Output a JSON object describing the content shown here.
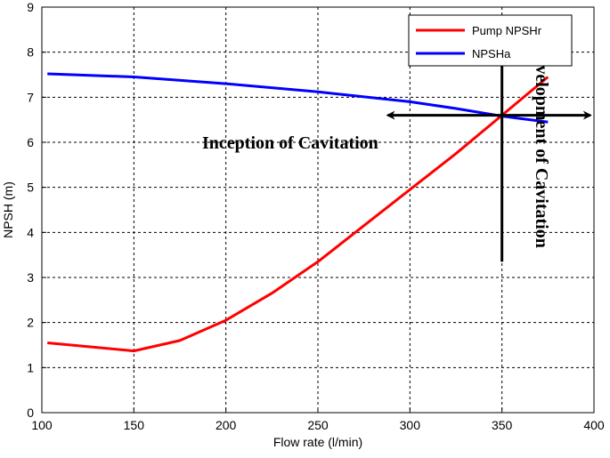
{
  "chart_data": {
    "type": "line",
    "xlabel": "Flow rate (l/min)",
    "ylabel": "NPSH (m)",
    "xlim": [
      100,
      400
    ],
    "ylim": [
      0,
      9
    ],
    "xticks": [
      100,
      150,
      200,
      250,
      300,
      350,
      400
    ],
    "yticks": [
      0,
      1,
      2,
      3,
      4,
      5,
      6,
      7,
      8,
      9
    ],
    "grid": true,
    "legend_position": "top-right",
    "series": [
      {
        "name": "Pump NPSHr",
        "color": "#ff0000",
        "x": [
          103,
          150,
          175,
          200,
          225,
          250,
          275,
          300,
          325,
          350,
          375
        ],
        "y": [
          1.55,
          1.37,
          1.6,
          2.05,
          2.65,
          3.35,
          4.15,
          4.95,
          5.75,
          6.6,
          7.45
        ]
      },
      {
        "name": "NPSHa",
        "color": "#0000ff",
        "x": [
          103,
          150,
          200,
          250,
          300,
          325,
          350,
          375
        ],
        "y": [
          7.52,
          7.45,
          7.3,
          7.12,
          6.9,
          6.75,
          6.58,
          6.45
        ]
      }
    ],
    "annotations": [
      {
        "text": "Inception of Cavitation",
        "orientation": "horizontal"
      },
      {
        "text": "Development of Cavitation",
        "orientation": "vertical"
      }
    ],
    "marker_arrows": {
      "horizontal": {
        "x_from": 288,
        "x_to": 398,
        "y": 6.6
      },
      "vertical": {
        "x": 350,
        "y_from": 3.35,
        "y_to": 7.7
      }
    }
  }
}
